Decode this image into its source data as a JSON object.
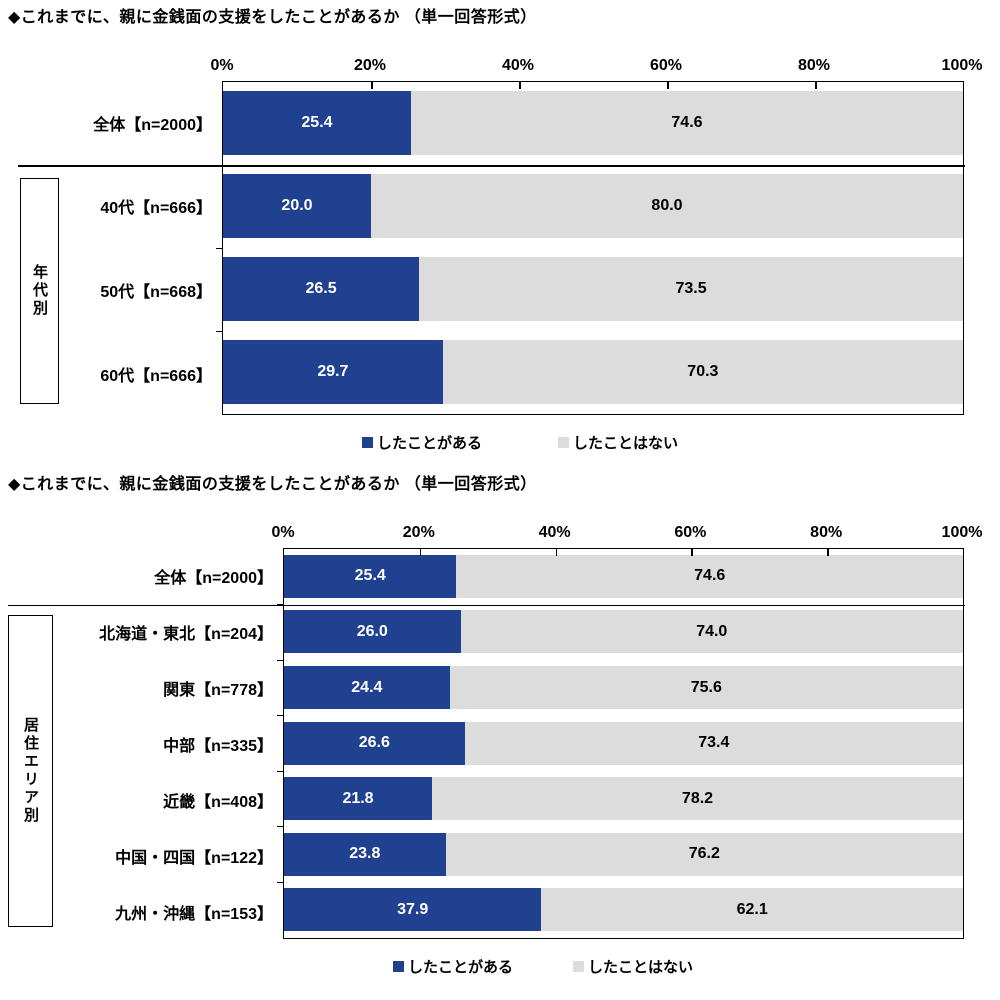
{
  "colors": {
    "yes_blue": "#1F418F",
    "no_gray": "#DCDCDC",
    "text": "#000000",
    "border": "#000000"
  },
  "chart_data": [
    {
      "type": "bar",
      "stacked": true,
      "orientation": "horizontal",
      "title": "◆これまでに、親に金銭面の支援をしたことがあるか （単一回答形式）",
      "group_label": "年代別",
      "categories": [
        "全体【n=2000】",
        "40代【n=666】",
        "50代【n=668】",
        "60代【n=666】"
      ],
      "series": [
        {
          "name": "したことがある",
          "color": "#1F418F",
          "values": [
            25.4,
            20.0,
            26.5,
            29.7
          ]
        },
        {
          "name": "したことはない",
          "color": "#DCDCDC",
          "values": [
            74.6,
            80.0,
            73.5,
            70.3
          ]
        }
      ],
      "xlim": [
        0,
        100
      ],
      "x_ticks": [
        "0%",
        "20%",
        "40%",
        "60%",
        "80%",
        "100%"
      ],
      "grid": false,
      "legend_position": "bottom",
      "value_labels": "inside"
    },
    {
      "type": "bar",
      "stacked": true,
      "orientation": "horizontal",
      "title": "◆これまでに、親に金銭面の支援をしたことがあるか （単一回答形式）",
      "group_label": "居住エリア別",
      "categories": [
        "全体【n=2000】",
        "北海道・東北【n=204】",
        "関東【n=778】",
        "中部【n=335】",
        "近畿【n=408】",
        "中国・四国【n=122】",
        "九州・沖縄【n=153】"
      ],
      "series": [
        {
          "name": "したことがある",
          "color": "#1F418F",
          "values": [
            25.4,
            26.0,
            24.4,
            26.6,
            21.8,
            23.8,
            37.9
          ]
        },
        {
          "name": "したことはない",
          "color": "#DCDCDC",
          "values": [
            74.6,
            74.0,
            75.6,
            73.4,
            78.2,
            76.2,
            62.1
          ]
        }
      ],
      "xlim": [
        0,
        100
      ],
      "x_ticks": [
        "0%",
        "20%",
        "40%",
        "60%",
        "80%",
        "100%"
      ],
      "grid": false,
      "legend_position": "bottom",
      "value_labels": "inside"
    }
  ]
}
